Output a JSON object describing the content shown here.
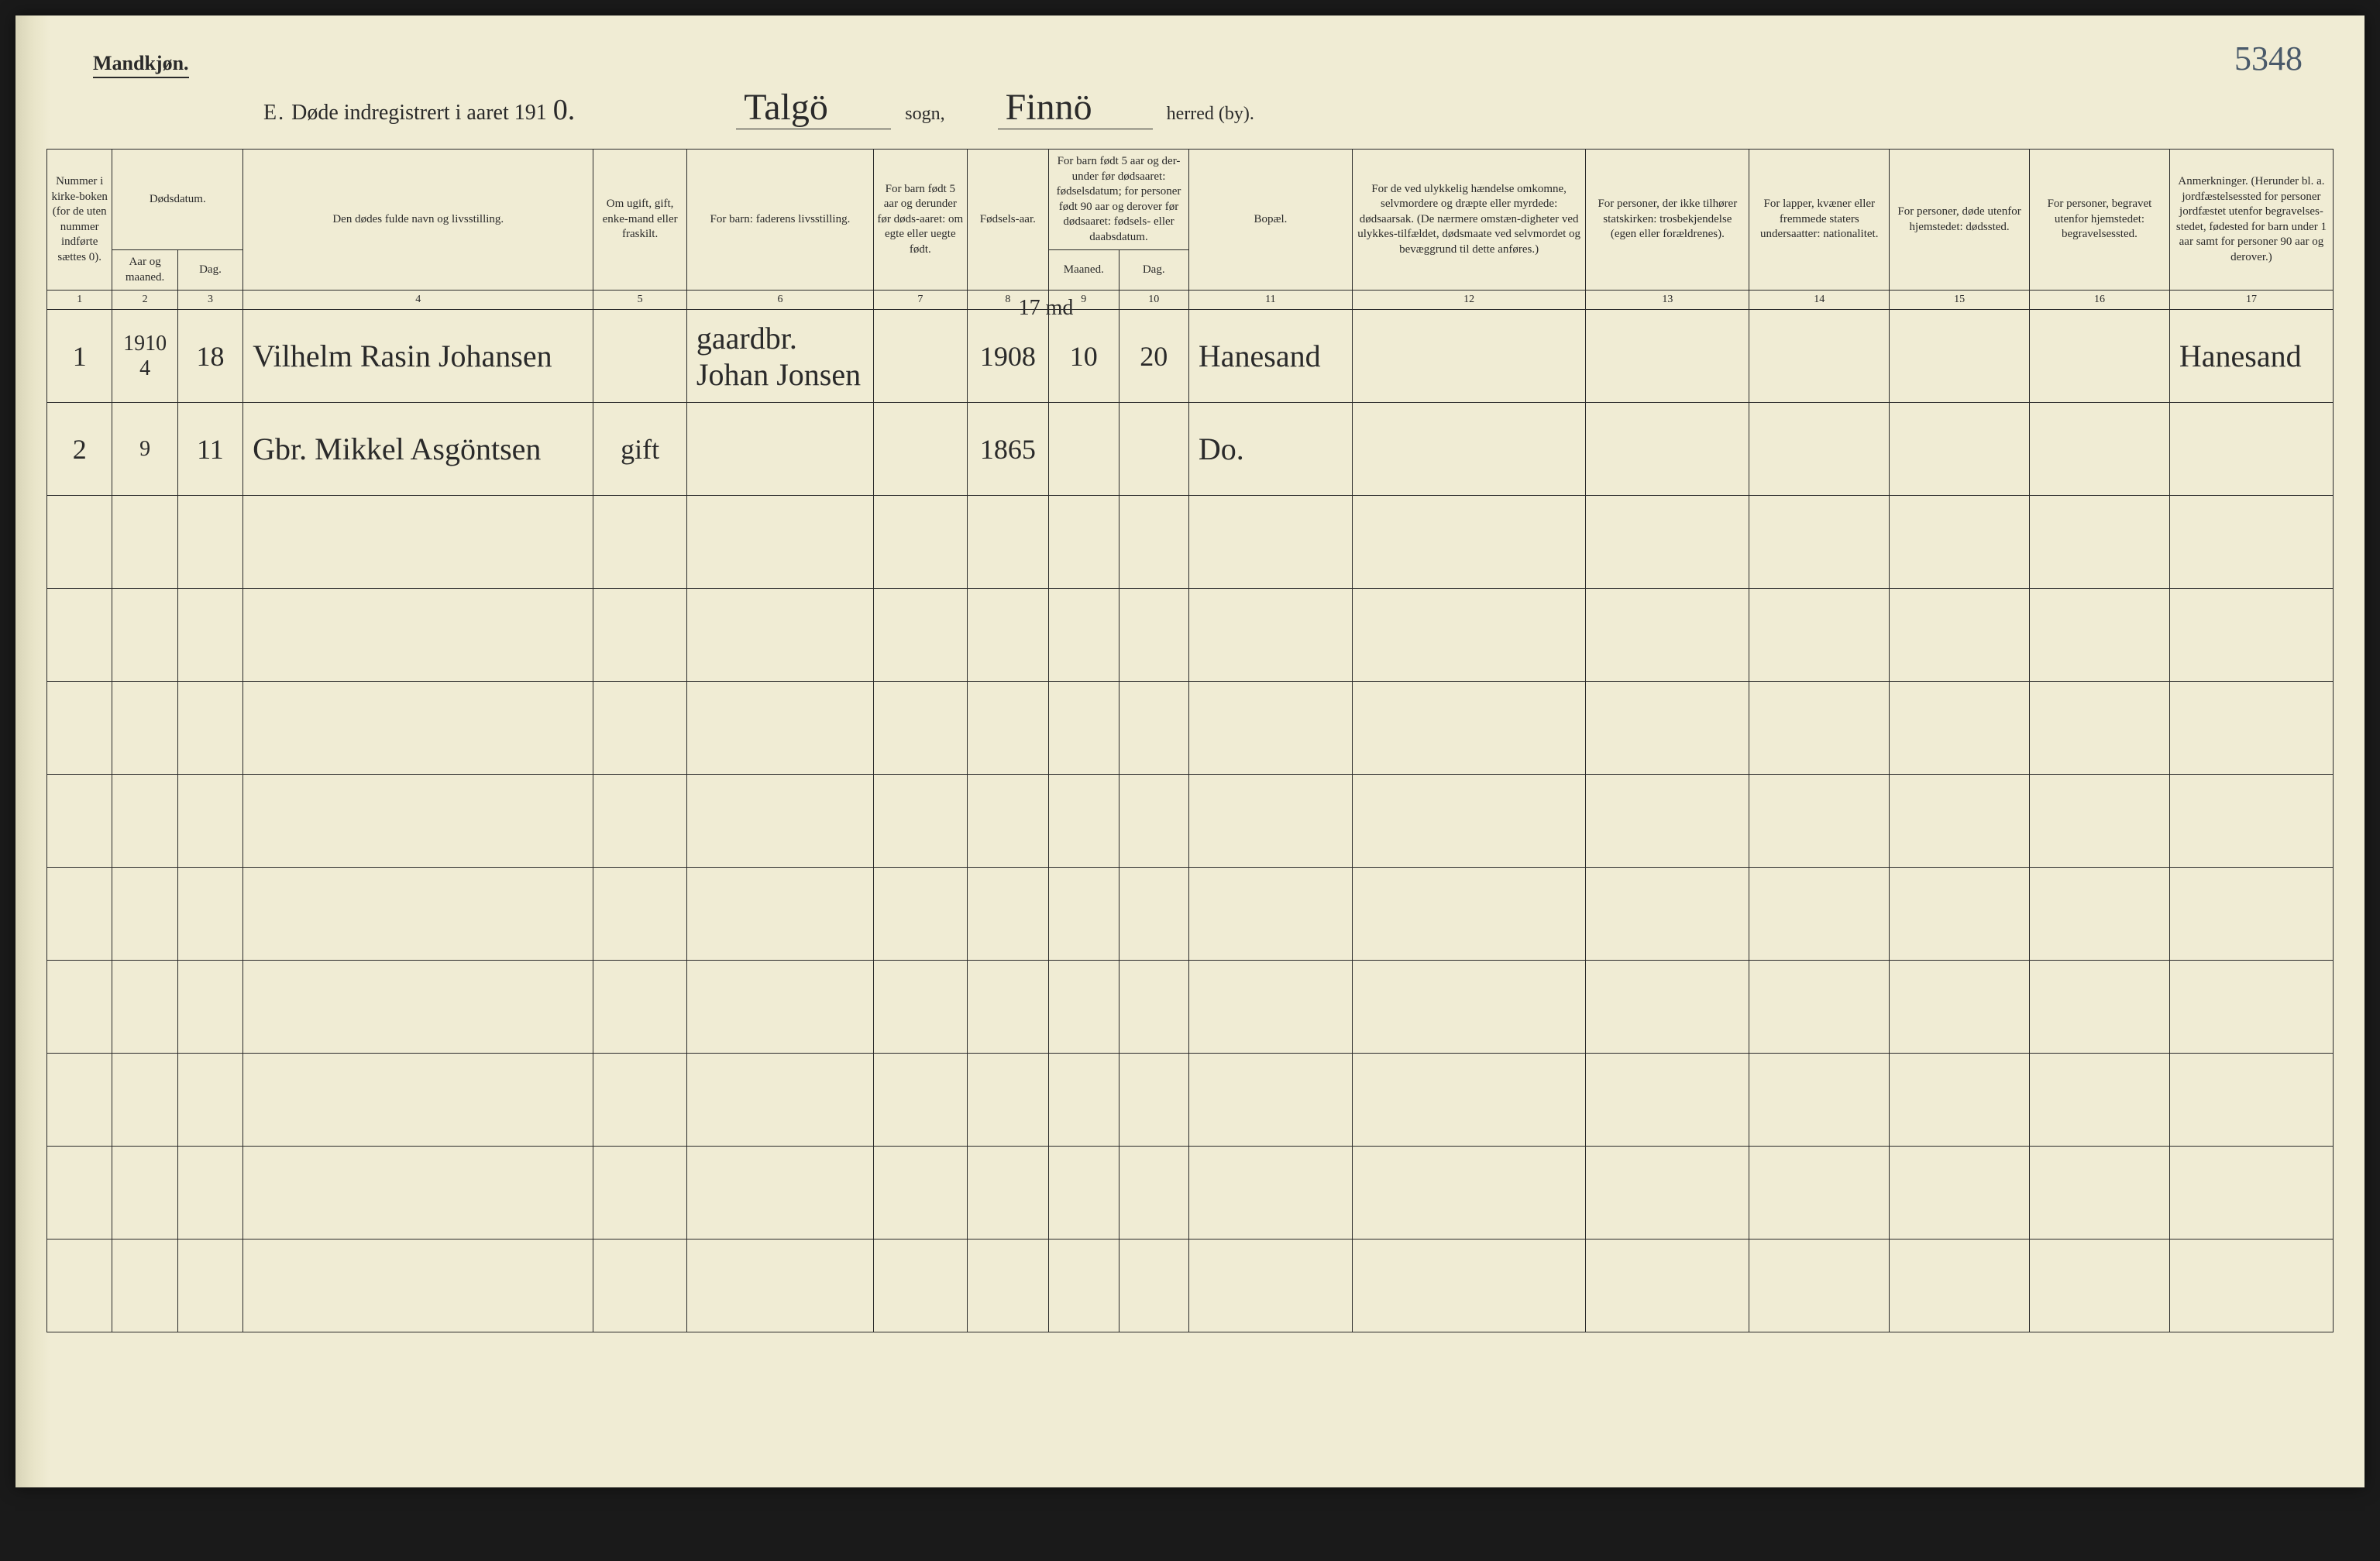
{
  "gender_label": "Mandkjøn.",
  "page_number": "5348",
  "title": {
    "prefix": "E.",
    "text": "Døde indregistrert i aaret 191",
    "year_hand": "0.",
    "sogn_hand": "Talgö",
    "sogn_label": "sogn,",
    "herred_hand": "Finnö",
    "herred_label": "herred (by)."
  },
  "headers": {
    "c1": "Nummer i kirke-boken (for de uten nummer indførte sættes 0).",
    "c2_top": "Dødsdatum.",
    "c2": "Aar og maaned.",
    "c3": "Dag.",
    "c4": "Den dødes fulde navn og livsstilling.",
    "c5": "Om ugift, gift, enke-mand eller fraskilt.",
    "c6": "For barn: faderens livsstilling.",
    "c7": "For barn født 5 aar og derunder før døds-aaret: om egte eller uegte født.",
    "c8": "Fødsels-aar.",
    "c9_top": "For barn født 5 aar og der-under før dødsaaret: fødselsdatum; for personer født 90 aar og derover før dødsaaret: fødsels- eller daabsdatum.",
    "c9": "Maaned.",
    "c10": "Dag.",
    "c11": "Bopæl.",
    "c12": "For de ved ulykkelig hændelse omkomne, selvmordere og dræpte eller myrdede: dødsaarsak. (De nærmere omstæn-digheter ved ulykkes-tilfældet, dødsmaate ved selvmordet og bevæggrund til dette anføres.)",
    "c13": "For personer, der ikke tilhører statskirken: trosbekjendelse (egen eller forældrenes).",
    "c14": "For lapper, kvæner eller fremmede staters undersaatter: nationalitet.",
    "c15": "For personer, døde utenfor hjemstedet: dødssted.",
    "c16": "For personer, begravet utenfor hjemstedet: begravelsessted.",
    "c17": "Anmerkninger. (Herunder bl. a. jordfæstelsessted for personer jordfæstet utenfor begravelses-stedet, fødested for barn under 1 aar samt for personer 90 aar og derover.)"
  },
  "colnums": [
    "1",
    "2",
    "3",
    "4",
    "5",
    "6",
    "7",
    "8",
    "9",
    "10",
    "11",
    "12",
    "13",
    "14",
    "15",
    "16",
    "17"
  ],
  "note_above_row1": "17 md",
  "rows": [
    {
      "num": "1",
      "aar": "1910 4",
      "dag": "18",
      "navn": "Vilhelm Rasin Johansen",
      "status": "",
      "far": "gaardbr. Johan Jonsen",
      "egte": "",
      "faar": "1908",
      "fmnd": "10",
      "fdag": "20",
      "bopael": "Hanesand",
      "c12": "",
      "c13": "",
      "c14": "",
      "c15": "",
      "c16": "",
      "anm": "Hanesand"
    },
    {
      "num": "2",
      "aar": "9",
      "dag": "11",
      "navn": "Gbr. Mikkel Asgöntsen",
      "status": "gift",
      "far": "",
      "egte": "",
      "faar": "1865",
      "fmnd": "",
      "fdag": "",
      "bopael": "Do.",
      "c12": "",
      "c13": "",
      "c14": "",
      "c15": "",
      "c16": "",
      "anm": ""
    },
    {
      "num": "",
      "aar": "",
      "dag": "",
      "navn": "",
      "status": "",
      "far": "",
      "egte": "",
      "faar": "",
      "fmnd": "",
      "fdag": "",
      "bopael": "",
      "c12": "",
      "c13": "",
      "c14": "",
      "c15": "",
      "c16": "",
      "anm": ""
    },
    {
      "num": "",
      "aar": "",
      "dag": "",
      "navn": "",
      "status": "",
      "far": "",
      "egte": "",
      "faar": "",
      "fmnd": "",
      "fdag": "",
      "bopael": "",
      "c12": "",
      "c13": "",
      "c14": "",
      "c15": "",
      "c16": "",
      "anm": ""
    },
    {
      "num": "",
      "aar": "",
      "dag": "",
      "navn": "",
      "status": "",
      "far": "",
      "egte": "",
      "faar": "",
      "fmnd": "",
      "fdag": "",
      "bopael": "",
      "c12": "",
      "c13": "",
      "c14": "",
      "c15": "",
      "c16": "",
      "anm": ""
    },
    {
      "num": "",
      "aar": "",
      "dag": "",
      "navn": "",
      "status": "",
      "far": "",
      "egte": "",
      "faar": "",
      "fmnd": "",
      "fdag": "",
      "bopael": "",
      "c12": "",
      "c13": "",
      "c14": "",
      "c15": "",
      "c16": "",
      "anm": ""
    },
    {
      "num": "",
      "aar": "",
      "dag": "",
      "navn": "",
      "status": "",
      "far": "",
      "egte": "",
      "faar": "",
      "fmnd": "",
      "fdag": "",
      "bopael": "",
      "c12": "",
      "c13": "",
      "c14": "",
      "c15": "",
      "c16": "",
      "anm": ""
    },
    {
      "num": "",
      "aar": "",
      "dag": "",
      "navn": "",
      "status": "",
      "far": "",
      "egte": "",
      "faar": "",
      "fmnd": "",
      "fdag": "",
      "bopael": "",
      "c12": "",
      "c13": "",
      "c14": "",
      "c15": "",
      "c16": "",
      "anm": ""
    },
    {
      "num": "",
      "aar": "",
      "dag": "",
      "navn": "",
      "status": "",
      "far": "",
      "egte": "",
      "faar": "",
      "fmnd": "",
      "fdag": "",
      "bopael": "",
      "c12": "",
      "c13": "",
      "c14": "",
      "c15": "",
      "c16": "",
      "anm": ""
    },
    {
      "num": "",
      "aar": "",
      "dag": "",
      "navn": "",
      "status": "",
      "far": "",
      "egte": "",
      "faar": "",
      "fmnd": "",
      "fdag": "",
      "bopael": "",
      "c12": "",
      "c13": "",
      "c14": "",
      "c15": "",
      "c16": "",
      "anm": ""
    },
    {
      "num": "",
      "aar": "",
      "dag": "",
      "navn": "",
      "status": "",
      "far": "",
      "egte": "",
      "faar": "",
      "fmnd": "",
      "fdag": "",
      "bopael": "",
      "c12": "",
      "c13": "",
      "c14": "",
      "c15": "",
      "c16": "",
      "anm": ""
    }
  ]
}
